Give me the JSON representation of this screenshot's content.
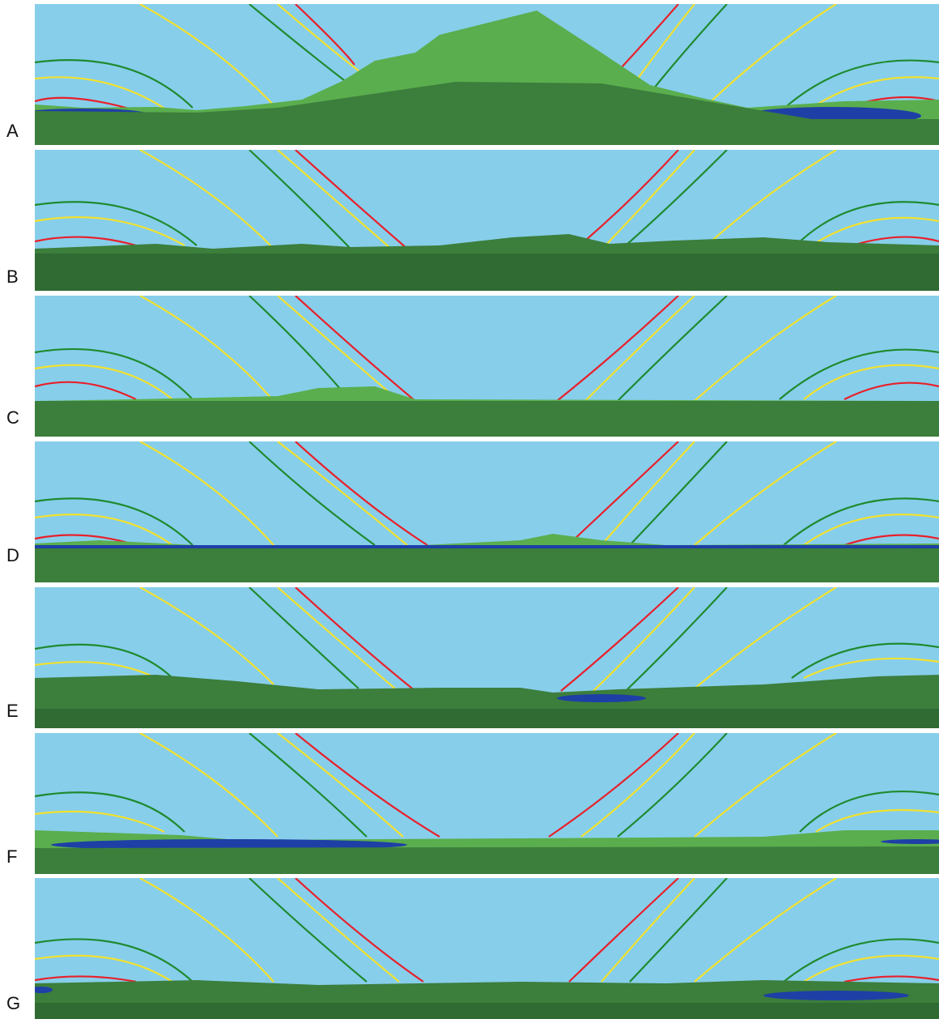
{
  "colors": {
    "sky": "#87CEEB",
    "ground": "#3C7E3C",
    "ground_dark": "#2F6B33",
    "hill": "#5AAE4E",
    "water": "#1E3FA6",
    "curve_red": "#E8202A",
    "curve_yellow": "#F2E12E",
    "curve_green": "#1F8A2E"
  },
  "panels": [
    {
      "label": "A"
    },
    {
      "label": "B"
    },
    {
      "label": "C"
    },
    {
      "label": "D"
    },
    {
      "label": "E"
    },
    {
      "label": "F"
    },
    {
      "label": "G"
    }
  ]
}
